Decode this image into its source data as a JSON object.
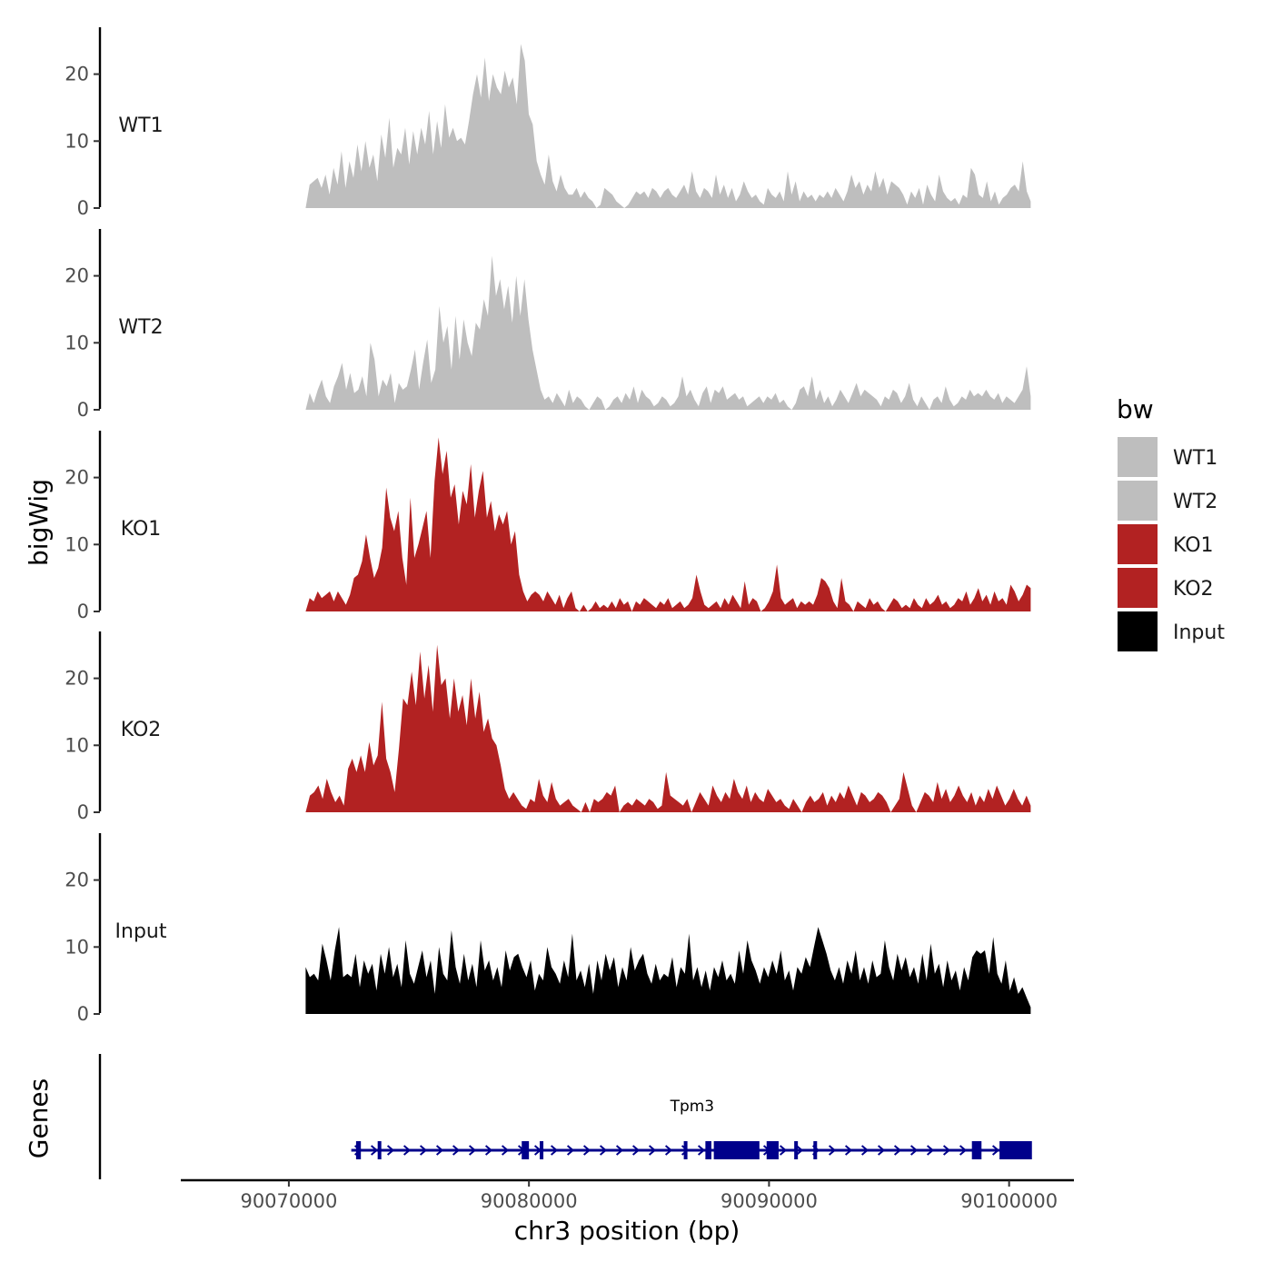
{
  "chart_data": {
    "type": "area",
    "title": "",
    "xlabel": "chr3 position (bp)",
    "ylabel": "bigWig",
    "genes_ylabel": "Genes",
    "xlim": [
      90065500,
      90102700
    ],
    "x_ticks": [
      90070000,
      90080000,
      90090000,
      90100000
    ],
    "x_tick_labels": [
      "90070000",
      "90080000",
      "90090000",
      "90100000"
    ],
    "ylim": [
      0,
      27
    ],
    "y_ticks": [
      0,
      10,
      20
    ],
    "y_tick_labels": [
      "0",
      "10",
      "20"
    ],
    "x_start": 90070700,
    "x_end": 90100900,
    "legend": {
      "title": "bw",
      "position": "right",
      "entries": [
        {
          "name": "WT1",
          "color": "#bebebe"
        },
        {
          "name": "WT2",
          "color": "#bebebe"
        },
        {
          "name": "KO1",
          "color": "#b22222"
        },
        {
          "name": "KO2",
          "color": "#b22222"
        },
        {
          "name": "Input",
          "color": "#000000"
        }
      ]
    },
    "series": [
      {
        "name": "WT1",
        "color": "#bebebe",
        "values": [
          0,
          3.5,
          4,
          4.5,
          3,
          5,
          2,
          6,
          3.5,
          8.5,
          3,
          7,
          4.5,
          9.5,
          5.5,
          10,
          6,
          8,
          4,
          11,
          7.5,
          13.5,
          6,
          9,
          8,
          12,
          6.5,
          11.5,
          8,
          12,
          9.5,
          14.5,
          8,
          13,
          9,
          15.5,
          10.5,
          12,
          10,
          10.5,
          9.5,
          13,
          17,
          20,
          16.5,
          22.5,
          16,
          20,
          18,
          17,
          20.5,
          18,
          19.5,
          15.5,
          24.5,
          22,
          14,
          12.5,
          7,
          5,
          3.5,
          8,
          4,
          2.5,
          5,
          3,
          2,
          2,
          3,
          1.5,
          2.5,
          1.5,
          1,
          0,
          0.5,
          3,
          2.5,
          2,
          1,
          0.5,
          0,
          0.5,
          1.5,
          2.5,
          2,
          2.5,
          1.5,
          3,
          2.5,
          1.5,
          2.5,
          3,
          2,
          1.5,
          2.5,
          3.5,
          2,
          5.5,
          2.5,
          1.5,
          3,
          2.5,
          1.5,
          5,
          2,
          3.5,
          1.5,
          3,
          1,
          2,
          4,
          2.5,
          1.5,
          2,
          1,
          0.5,
          3,
          2,
          1.5,
          2.5,
          1,
          5.5,
          2,
          4,
          1,
          2.5,
          1.5,
          2,
          1,
          2,
          1.5,
          2.5,
          1.5,
          3,
          2,
          1,
          2.5,
          5,
          3,
          4,
          2,
          3.5,
          2.5,
          5.5,
          3,
          4.5,
          2,
          4,
          3.5,
          3,
          2,
          0.5,
          2.5,
          1.5,
          3,
          0.5,
          3.5,
          2,
          1,
          5,
          2.5,
          1.5,
          1,
          1.5,
          0.5,
          2,
          1.5,
          6,
          5,
          2,
          1.5,
          4,
          1,
          2.5,
          0.5,
          1.5,
          2,
          3,
          3.5,
          2.5,
          7,
          2.5,
          1
        ]
      },
      {
        "name": "WT2",
        "color": "#bebebe",
        "values": [
          0,
          2.5,
          1,
          3,
          4.5,
          2,
          1,
          3.5,
          5,
          7,
          3,
          5.5,
          2.5,
          3,
          5,
          2,
          10,
          7.5,
          2,
          4.5,
          3.5,
          5.5,
          1,
          4,
          3,
          3.5,
          6,
          9,
          3,
          7,
          10.5,
          4,
          6,
          15.5,
          10,
          12.5,
          6,
          14,
          7.5,
          13.5,
          10,
          8,
          13,
          12,
          16.5,
          14,
          23,
          17,
          19.5,
          15,
          18.5,
          13,
          20,
          14,
          19.5,
          13.5,
          9,
          6,
          3,
          1.5,
          2,
          1,
          2.5,
          1.5,
          0.5,
          3,
          1,
          2,
          1.5,
          0.5,
          0,
          1,
          2,
          1.5,
          0,
          0.5,
          1.5,
          2,
          1,
          2.5,
          1.5,
          3.5,
          1,
          3,
          2,
          1.5,
          0.5,
          1,
          2,
          1.5,
          0.5,
          1,
          2,
          5,
          2,
          3,
          1.5,
          0.5,
          2.5,
          3.5,
          1,
          3,
          2.5,
          3.5,
          1.5,
          2,
          2.5,
          1.5,
          2,
          0.5,
          1,
          1.5,
          2,
          1,
          2,
          1.5,
          2.5,
          1,
          1.5,
          0.5,
          0,
          1,
          3,
          3.5,
          2,
          5,
          1.5,
          3,
          1,
          2,
          0.5,
          1.5,
          3,
          2,
          1,
          2.5,
          4,
          2,
          3,
          2.5,
          2,
          1.5,
          0.5,
          2,
          1.5,
          3,
          2.5,
          1,
          2,
          4,
          1.5,
          0.5,
          2,
          1,
          0,
          1.5,
          2,
          1,
          3.5,
          1.5,
          0.5,
          1,
          2,
          1.5,
          3,
          2,
          2.5,
          2,
          3,
          2,
          1.5,
          2.5,
          1,
          2,
          1.5,
          1,
          2,
          3,
          6.5,
          2
        ]
      },
      {
        "name": "KO1",
        "color": "#b22222",
        "values": [
          0,
          2,
          1.5,
          3,
          2,
          2.5,
          3,
          1.5,
          3,
          2,
          1,
          2.5,
          5,
          5.5,
          7.5,
          11.5,
          8,
          5,
          6.5,
          9.5,
          18.5,
          14,
          12,
          15,
          8,
          4,
          17,
          8,
          10,
          12.5,
          15,
          8,
          19.5,
          26,
          20.5,
          24,
          17,
          19,
          13,
          18,
          16,
          22,
          14,
          18,
          21,
          14,
          16.5,
          12,
          14.5,
          13,
          15,
          10,
          12,
          5.5,
          3,
          1.5,
          2.5,
          3,
          2.5,
          1.5,
          3,
          2,
          1,
          2.5,
          0.5,
          2,
          3,
          0.5,
          0,
          1,
          0,
          0.5,
          1.5,
          0.5,
          1,
          0.5,
          1.5,
          0.5,
          2,
          1,
          1.5,
          0,
          1.5,
          1,
          2,
          1.5,
          1,
          0.5,
          1.5,
          1,
          2,
          0.5,
          1,
          1.5,
          0.5,
          1,
          2,
          5.5,
          3,
          1,
          0.5,
          1,
          1.5,
          0.5,
          2,
          1,
          2.5,
          1.5,
          0.5,
          4.5,
          1,
          2,
          1.5,
          0,
          0.5,
          1.5,
          3,
          7,
          2,
          1,
          1.5,
          2,
          0.5,
          1.5,
          1,
          1.5,
          1,
          2.5,
          5,
          4.5,
          3.5,
          1.5,
          0.5,
          5,
          1.5,
          1,
          0,
          1.5,
          1,
          0.5,
          2,
          1,
          1.5,
          0.5,
          0,
          1,
          2,
          1.5,
          0.5,
          1,
          0.5,
          2,
          1,
          0.5,
          2,
          1,
          1.5,
          2.5,
          1,
          1.5,
          0.5,
          1,
          2,
          1.5,
          3,
          1,
          2,
          3.5,
          1.5,
          2.5,
          1,
          3,
          1.5,
          2,
          1,
          4,
          3,
          1.5,
          2.5,
          4,
          3.5
        ]
      },
      {
        "name": "KO2",
        "color": "#b22222",
        "values": [
          0,
          2.5,
          3,
          4,
          2,
          5,
          3,
          1.5,
          2.5,
          1,
          6.5,
          8,
          6,
          8.5,
          6,
          10.5,
          7,
          8.5,
          16.5,
          8,
          6,
          3,
          9.5,
          17,
          16,
          21,
          16,
          24,
          17,
          22,
          15,
          25,
          19,
          20,
          14,
          20,
          15,
          17.5,
          13,
          20,
          14,
          18,
          12,
          14,
          11,
          10,
          7,
          3.5,
          2,
          3,
          2,
          1,
          0.5,
          2,
          1.5,
          5,
          2.5,
          1.5,
          4.5,
          2,
          1,
          1.5,
          2,
          1,
          0.5,
          0,
          1.5,
          0,
          2,
          1.5,
          2,
          3,
          2.5,
          4,
          0,
          1,
          1.5,
          1,
          2,
          1.5,
          1,
          2,
          1.5,
          0.5,
          1,
          6,
          2.5,
          2,
          1.5,
          1,
          2,
          0,
          1.5,
          3,
          2,
          1,
          4,
          2.5,
          1.5,
          3,
          2,
          5,
          3,
          2,
          4,
          1.5,
          3,
          2,
          1.5,
          3.5,
          2.5,
          1.5,
          2,
          1,
          0.5,
          2,
          1,
          0,
          1.5,
          2.5,
          1.5,
          2,
          3,
          1,
          2.5,
          1.5,
          3,
          2,
          4,
          2.5,
          1,
          3,
          2.5,
          1.5,
          2,
          3,
          2.5,
          1.5,
          0,
          1,
          2,
          6,
          3.5,
          1,
          0,
          1.5,
          3,
          2.5,
          1.5,
          4.5,
          2,
          3.5,
          1.5,
          2.5,
          4,
          2.5,
          1.5,
          3,
          1,
          2.5,
          1.5,
          3.5,
          2,
          4,
          2.5,
          1,
          2,
          3.5,
          2,
          1,
          2.5,
          1
        ]
      },
      {
        "name": "Input",
        "color": "#000000",
        "values": [
          7,
          5.5,
          6,
          5,
          10.5,
          8,
          5,
          9.5,
          13,
          5.5,
          6,
          5.5,
          9,
          4,
          8,
          6,
          7.5,
          3.5,
          9,
          6,
          10,
          5.5,
          7.5,
          4,
          11,
          6,
          4.5,
          7,
          9.5,
          5.5,
          8,
          3,
          10,
          6,
          5,
          12.5,
          7,
          4.5,
          9,
          5,
          7.5,
          4,
          11,
          6.5,
          8,
          5,
          7,
          4,
          9.5,
          6.5,
          8.5,
          9,
          7,
          5.5,
          8,
          3.5,
          6,
          5,
          10,
          7,
          6,
          4.5,
          8,
          5.5,
          12,
          5,
          6.5,
          4,
          7.5,
          3,
          8,
          5,
          9,
          6.5,
          8.5,
          4,
          7,
          5,
          10,
          6.5,
          8,
          9,
          6,
          4.5,
          7.5,
          5,
          6,
          5.5,
          8.5,
          4,
          7,
          6,
          12,
          5,
          7,
          4,
          6.5,
          3.5,
          7,
          5.5,
          8,
          5,
          6,
          4.5,
          9.5,
          6,
          11,
          8,
          6.5,
          4.5,
          7,
          5.5,
          8,
          6,
          9.5,
          5,
          6.5,
          3.5,
          7,
          6,
          8.5,
          7,
          10,
          13,
          11,
          9,
          6.5,
          5,
          7,
          4.5,
          8,
          6,
          9.5,
          5,
          7,
          4.5,
          8,
          5.5,
          6,
          11,
          7,
          5,
          9,
          6.5,
          8.5,
          5.5,
          7,
          4.5,
          9,
          5,
          10.5,
          6,
          7.5,
          4,
          8,
          5,
          6.5,
          3.5,
          7,
          5,
          8.5,
          9.5,
          9,
          9.5,
          6,
          11.5,
          6,
          4.5,
          8,
          3.5,
          5.5,
          3,
          4,
          2.5,
          1
        ]
      }
    ],
    "genes": [
      {
        "name": "Tpm3",
        "label_x": 90086800,
        "strand": "+",
        "start": 90072600,
        "end": 90100900,
        "exons": [
          [
            90072800,
            90073000
          ],
          [
            90073700,
            90073850
          ],
          [
            90079700,
            90080000
          ],
          [
            90080450,
            90080600
          ],
          [
            90086450,
            90086600
          ],
          [
            90087350,
            90087600
          ],
          [
            90087700,
            90089600
          ],
          [
            90089900,
            90090400
          ],
          [
            90091050,
            90091150
          ],
          [
            90091850,
            90092000
          ],
          [
            90098450,
            90098850
          ],
          [
            90099600,
            90100950
          ]
        ]
      }
    ]
  }
}
